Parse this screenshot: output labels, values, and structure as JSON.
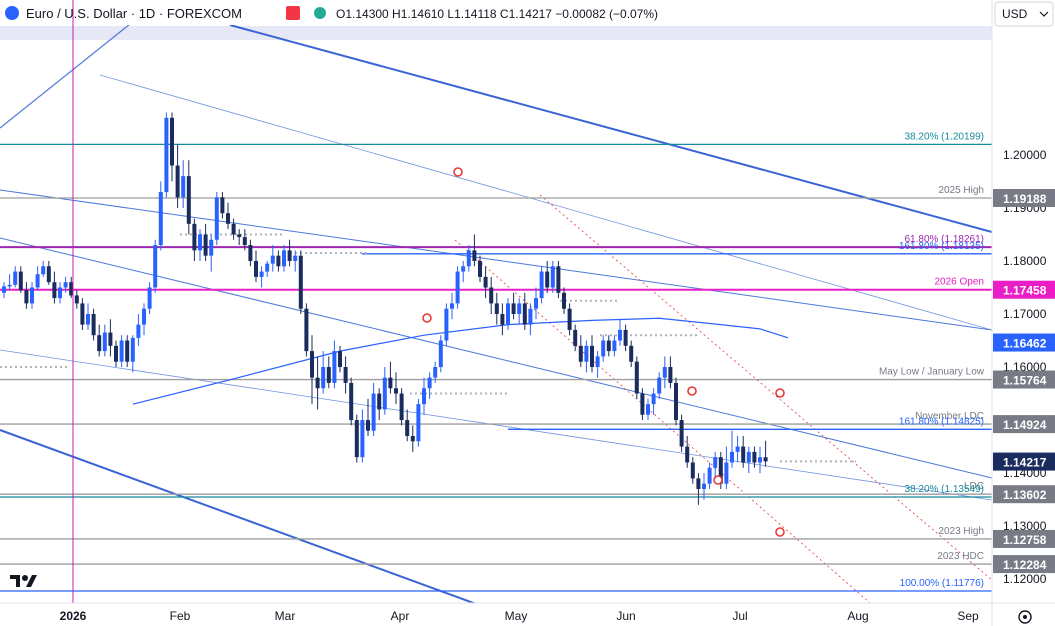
{
  "header": {
    "symbol_title": "Euro / U.S. Dollar · 1D · FOREXCOM",
    "ohlc": "O1.14300 H1.14610 L1.14118 C1.14217 −0.00082 (−0.07%)",
    "currency_selector": "USD",
    "up_color": "#2962ff",
    "down_color": "#1a2b5e"
  },
  "footer": {
    "tv_logo": "TradingView",
    "settings_icon": "gear-icon"
  },
  "chart_data": {
    "type": "candlestick",
    "x_ticks": [
      "2026",
      "Feb",
      "Mar",
      "Apr",
      "May",
      "Jun",
      "Jul",
      "Aug",
      "Sep"
    ],
    "ylim": [
      1.1155,
      1.2245
    ],
    "y_ticks": [
      1.12,
      1.13,
      1.14,
      1.15,
      1.16,
      1.17,
      1.18,
      1.19,
      1.2
    ],
    "y_tick_labels": [
      "1.12000",
      "1.13000",
      "1.14000",
      "1.15000",
      "1.16000",
      "1.17000",
      "1.18000",
      "1.19000",
      "1.20000"
    ],
    "candles": [
      {
        "o": 1.174,
        "h": 1.176,
        "l": 1.173,
        "c": 1.1752
      },
      {
        "o": 1.1752,
        "h": 1.1775,
        "l": 1.1745,
        "c": 1.1755
      },
      {
        "o": 1.1755,
        "h": 1.179,
        "l": 1.175,
        "c": 1.178
      },
      {
        "o": 1.178,
        "h": 1.179,
        "l": 1.174,
        "c": 1.1745
      },
      {
        "o": 1.1745,
        "h": 1.176,
        "l": 1.171,
        "c": 1.172
      },
      {
        "o": 1.172,
        "h": 1.176,
        "l": 1.171,
        "c": 1.175
      },
      {
        "o": 1.175,
        "h": 1.179,
        "l": 1.1745,
        "c": 1.1775
      },
      {
        "o": 1.1775,
        "h": 1.18,
        "l": 1.177,
        "c": 1.179
      },
      {
        "o": 1.179,
        "h": 1.18,
        "l": 1.1755,
        "c": 1.176
      },
      {
        "o": 1.176,
        "h": 1.178,
        "l": 1.172,
        "c": 1.173
      },
      {
        "o": 1.173,
        "h": 1.176,
        "l": 1.172,
        "c": 1.175
      },
      {
        "o": 1.175,
        "h": 1.177,
        "l": 1.174,
        "c": 1.176
      },
      {
        "o": 1.176,
        "h": 1.177,
        "l": 1.173,
        "c": 1.1735
      },
      {
        "o": 1.1735,
        "h": 1.1745,
        "l": 1.171,
        "c": 1.172
      },
      {
        "o": 1.172,
        "h": 1.173,
        "l": 1.167,
        "c": 1.168
      },
      {
        "o": 1.168,
        "h": 1.172,
        "l": 1.167,
        "c": 1.17
      },
      {
        "o": 1.17,
        "h": 1.171,
        "l": 1.165,
        "c": 1.166
      },
      {
        "o": 1.166,
        "h": 1.168,
        "l": 1.162,
        "c": 1.163
      },
      {
        "o": 1.163,
        "h": 1.168,
        "l": 1.162,
        "c": 1.1665
      },
      {
        "o": 1.1665,
        "h": 1.169,
        "l": 1.162,
        "c": 1.164
      },
      {
        "o": 1.164,
        "h": 1.165,
        "l": 1.16,
        "c": 1.161
      },
      {
        "o": 1.161,
        "h": 1.166,
        "l": 1.16,
        "c": 1.165
      },
      {
        "o": 1.165,
        "h": 1.166,
        "l": 1.16,
        "c": 1.161
      },
      {
        "o": 1.161,
        "h": 1.166,
        "l": 1.159,
        "c": 1.1655
      },
      {
        "o": 1.1655,
        "h": 1.17,
        "l": 1.164,
        "c": 1.168
      },
      {
        "o": 1.168,
        "h": 1.172,
        "l": 1.166,
        "c": 1.171
      },
      {
        "o": 1.171,
        "h": 1.176,
        "l": 1.17,
        "c": 1.175
      },
      {
        "o": 1.175,
        "h": 1.184,
        "l": 1.174,
        "c": 1.183
      },
      {
        "o": 1.183,
        "h": 1.195,
        "l": 1.182,
        "c": 1.193
      },
      {
        "o": 1.193,
        "h": 1.208,
        "l": 1.192,
        "c": 1.207
      },
      {
        "o": 1.207,
        "h": 1.208,
        "l": 1.195,
        "c": 1.198
      },
      {
        "o": 1.198,
        "h": 1.202,
        "l": 1.19,
        "c": 1.192
      },
      {
        "o": 1.192,
        "h": 1.199,
        "l": 1.19,
        "c": 1.196
      },
      {
        "o": 1.196,
        "h": 1.199,
        "l": 1.185,
        "c": 1.187
      },
      {
        "o": 1.187,
        "h": 1.188,
        "l": 1.18,
        "c": 1.182
      },
      {
        "o": 1.182,
        "h": 1.186,
        "l": 1.18,
        "c": 1.185
      },
      {
        "o": 1.185,
        "h": 1.187,
        "l": 1.18,
        "c": 1.181
      },
      {
        "o": 1.181,
        "h": 1.185,
        "l": 1.178,
        "c": 1.184
      },
      {
        "o": 1.184,
        "h": 1.193,
        "l": 1.183,
        "c": 1.192
      },
      {
        "o": 1.192,
        "h": 1.193,
        "l": 1.188,
        "c": 1.189
      },
      {
        "o": 1.189,
        "h": 1.191,
        "l": 1.186,
        "c": 1.187
      },
      {
        "o": 1.187,
        "h": 1.188,
        "l": 1.184,
        "c": 1.185
      },
      {
        "o": 1.185,
        "h": 1.186,
        "l": 1.183,
        "c": 1.1845
      },
      {
        "o": 1.1845,
        "h": 1.186,
        "l": 1.182,
        "c": 1.183
      },
      {
        "o": 1.183,
        "h": 1.184,
        "l": 1.179,
        "c": 1.18
      },
      {
        "o": 1.18,
        "h": 1.182,
        "l": 1.176,
        "c": 1.177
      },
      {
        "o": 1.177,
        "h": 1.179,
        "l": 1.175,
        "c": 1.178
      },
      {
        "o": 1.178,
        "h": 1.18,
        "l": 1.177,
        "c": 1.1795
      },
      {
        "o": 1.1795,
        "h": 1.183,
        "l": 1.178,
        "c": 1.181
      },
      {
        "o": 1.181,
        "h": 1.182,
        "l": 1.178,
        "c": 1.179
      },
      {
        "o": 1.179,
        "h": 1.183,
        "l": 1.178,
        "c": 1.182
      },
      {
        "o": 1.182,
        "h": 1.184,
        "l": 1.179,
        "c": 1.18
      },
      {
        "o": 1.18,
        "h": 1.182,
        "l": 1.178,
        "c": 1.181
      },
      {
        "o": 1.181,
        "h": 1.182,
        "l": 1.17,
        "c": 1.171
      },
      {
        "o": 1.171,
        "h": 1.172,
        "l": 1.162,
        "c": 1.163
      },
      {
        "o": 1.163,
        "h": 1.166,
        "l": 1.153,
        "c": 1.158
      },
      {
        "o": 1.158,
        "h": 1.162,
        "l": 1.152,
        "c": 1.156
      },
      {
        "o": 1.156,
        "h": 1.163,
        "l": 1.155,
        "c": 1.16
      },
      {
        "o": 1.16,
        "h": 1.162,
        "l": 1.156,
        "c": 1.157
      },
      {
        "o": 1.157,
        "h": 1.165,
        "l": 1.156,
        "c": 1.163
      },
      {
        "o": 1.163,
        "h": 1.164,
        "l": 1.159,
        "c": 1.16
      },
      {
        "o": 1.16,
        "h": 1.162,
        "l": 1.155,
        "c": 1.157
      },
      {
        "o": 1.157,
        "h": 1.158,
        "l": 1.149,
        "c": 1.15
      },
      {
        "o": 1.15,
        "h": 1.151,
        "l": 1.142,
        "c": 1.143
      },
      {
        "o": 1.143,
        "h": 1.152,
        "l": 1.142,
        "c": 1.15
      },
      {
        "o": 1.15,
        "h": 1.154,
        "l": 1.147,
        "c": 1.148
      },
      {
        "o": 1.148,
        "h": 1.157,
        "l": 1.147,
        "c": 1.155
      },
      {
        "o": 1.155,
        "h": 1.156,
        "l": 1.15,
        "c": 1.152
      },
      {
        "o": 1.152,
        "h": 1.16,
        "l": 1.151,
        "c": 1.158
      },
      {
        "o": 1.158,
        "h": 1.161,
        "l": 1.155,
        "c": 1.156
      },
      {
        "o": 1.156,
        "h": 1.159,
        "l": 1.153,
        "c": 1.155
      },
      {
        "o": 1.155,
        "h": 1.156,
        "l": 1.149,
        "c": 1.15
      },
      {
        "o": 1.15,
        "h": 1.152,
        "l": 1.146,
        "c": 1.147
      },
      {
        "o": 1.147,
        "h": 1.149,
        "l": 1.144,
        "c": 1.146
      },
      {
        "o": 1.146,
        "h": 1.154,
        "l": 1.145,
        "c": 1.153
      },
      {
        "o": 1.153,
        "h": 1.158,
        "l": 1.151,
        "c": 1.156
      },
      {
        "o": 1.156,
        "h": 1.159,
        "l": 1.154,
        "c": 1.158
      },
      {
        "o": 1.158,
        "h": 1.161,
        "l": 1.157,
        "c": 1.16
      },
      {
        "o": 1.16,
        "h": 1.166,
        "l": 1.159,
        "c": 1.165
      },
      {
        "o": 1.165,
        "h": 1.172,
        "l": 1.164,
        "c": 1.171
      },
      {
        "o": 1.171,
        "h": 1.174,
        "l": 1.169,
        "c": 1.172
      },
      {
        "o": 1.172,
        "h": 1.179,
        "l": 1.171,
        "c": 1.178
      },
      {
        "o": 1.178,
        "h": 1.18,
        "l": 1.176,
        "c": 1.179
      },
      {
        "o": 1.179,
        "h": 1.183,
        "l": 1.178,
        "c": 1.182
      },
      {
        "o": 1.182,
        "h": 1.185,
        "l": 1.179,
        "c": 1.18
      },
      {
        "o": 1.18,
        "h": 1.181,
        "l": 1.176,
        "c": 1.177
      },
      {
        "o": 1.177,
        "h": 1.179,
        "l": 1.173,
        "c": 1.175
      },
      {
        "o": 1.175,
        "h": 1.177,
        "l": 1.17,
        "c": 1.172
      },
      {
        "o": 1.172,
        "h": 1.174,
        "l": 1.168,
        "c": 1.17
      },
      {
        "o": 1.17,
        "h": 1.172,
        "l": 1.166,
        "c": 1.168
      },
      {
        "o": 1.168,
        "h": 1.173,
        "l": 1.167,
        "c": 1.172
      },
      {
        "o": 1.172,
        "h": 1.174,
        "l": 1.169,
        "c": 1.17
      },
      {
        "o": 1.17,
        "h": 1.173,
        "l": 1.168,
        "c": 1.172
      },
      {
        "o": 1.172,
        "h": 1.174,
        "l": 1.167,
        "c": 1.168
      },
      {
        "o": 1.168,
        "h": 1.172,
        "l": 1.166,
        "c": 1.171
      },
      {
        "o": 1.171,
        "h": 1.175,
        "l": 1.169,
        "c": 1.173
      },
      {
        "o": 1.173,
        "h": 1.179,
        "l": 1.172,
        "c": 1.178
      },
      {
        "o": 1.178,
        "h": 1.18,
        "l": 1.174,
        "c": 1.175
      },
      {
        "o": 1.175,
        "h": 1.18,
        "l": 1.174,
        "c": 1.179
      },
      {
        "o": 1.179,
        "h": 1.18,
        "l": 1.173,
        "c": 1.174
      },
      {
        "o": 1.174,
        "h": 1.175,
        "l": 1.17,
        "c": 1.171
      },
      {
        "o": 1.171,
        "h": 1.172,
        "l": 1.166,
        "c": 1.167
      },
      {
        "o": 1.167,
        "h": 1.168,
        "l": 1.163,
        "c": 1.164
      },
      {
        "o": 1.164,
        "h": 1.166,
        "l": 1.16,
        "c": 1.161
      },
      {
        "o": 1.161,
        "h": 1.165,
        "l": 1.159,
        "c": 1.164
      },
      {
        "o": 1.164,
        "h": 1.166,
        "l": 1.159,
        "c": 1.16
      },
      {
        "o": 1.16,
        "h": 1.163,
        "l": 1.158,
        "c": 1.162
      },
      {
        "o": 1.162,
        "h": 1.166,
        "l": 1.161,
        "c": 1.165
      },
      {
        "o": 1.165,
        "h": 1.166,
        "l": 1.162,
        "c": 1.163
      },
      {
        "o": 1.163,
        "h": 1.166,
        "l": 1.162,
        "c": 1.165
      },
      {
        "o": 1.165,
        "h": 1.169,
        "l": 1.164,
        "c": 1.167
      },
      {
        "o": 1.167,
        "h": 1.168,
        "l": 1.163,
        "c": 1.164
      },
      {
        "o": 1.164,
        "h": 1.165,
        "l": 1.16,
        "c": 1.161
      },
      {
        "o": 1.161,
        "h": 1.162,
        "l": 1.154,
        "c": 1.155
      },
      {
        "o": 1.155,
        "h": 1.156,
        "l": 1.15,
        "c": 1.151
      },
      {
        "o": 1.151,
        "h": 1.154,
        "l": 1.15,
        "c": 1.153
      },
      {
        "o": 1.153,
        "h": 1.156,
        "l": 1.151,
        "c": 1.155
      },
      {
        "o": 1.155,
        "h": 1.159,
        "l": 1.154,
        "c": 1.158
      },
      {
        "o": 1.158,
        "h": 1.162,
        "l": 1.156,
        "c": 1.16
      },
      {
        "o": 1.16,
        "h": 1.162,
        "l": 1.156,
        "c": 1.157
      },
      {
        "o": 1.157,
        "h": 1.158,
        "l": 1.149,
        "c": 1.15
      },
      {
        "o": 1.15,
        "h": 1.151,
        "l": 1.144,
        "c": 1.145
      },
      {
        "o": 1.145,
        "h": 1.147,
        "l": 1.141,
        "c": 1.142
      },
      {
        "o": 1.142,
        "h": 1.143,
        "l": 1.138,
        "c": 1.139
      },
      {
        "o": 1.139,
        "h": 1.14,
        "l": 1.134,
        "c": 1.137
      },
      {
        "o": 1.137,
        "h": 1.14,
        "l": 1.135,
        "c": 1.138
      },
      {
        "o": 1.138,
        "h": 1.142,
        "l": 1.137,
        "c": 1.141
      },
      {
        "o": 1.141,
        "h": 1.144,
        "l": 1.139,
        "c": 1.143
      },
      {
        "o": 1.143,
        "h": 1.144,
        "l": 1.137,
        "c": 1.138
      },
      {
        "o": 1.138,
        "h": 1.145,
        "l": 1.137,
        "c": 1.142
      },
      {
        "o": 1.142,
        "h": 1.148,
        "l": 1.141,
        "c": 1.144
      },
      {
        "o": 1.144,
        "h": 1.147,
        "l": 1.142,
        "c": 1.145
      },
      {
        "o": 1.145,
        "h": 1.147,
        "l": 1.141,
        "c": 1.142
      },
      {
        "o": 1.142,
        "h": 1.145,
        "l": 1.14,
        "c": 1.144
      },
      {
        "o": 1.144,
        "h": 1.145,
        "l": 1.141,
        "c": 1.142
      },
      {
        "o": 1.142,
        "h": 1.145,
        "l": 1.14,
        "c": 1.143
      },
      {
        "o": 1.143,
        "h": 1.1461,
        "l": 1.1412,
        "c": 1.1422
      }
    ],
    "sma": {
      "color": "#2962ff",
      "points": [
        [
          23,
          1.153
        ],
        [
          40,
          1.1575
        ],
        [
          60,
          1.163
        ],
        [
          75,
          1.166
        ],
        [
          90,
          1.168
        ],
        [
          105,
          1.1688
        ],
        [
          117,
          1.1692
        ],
        [
          128,
          1.168
        ],
        [
          135,
          1.1672
        ],
        [
          140,
          1.1655
        ]
      ]
    },
    "horizontal_levels": [
      {
        "value": 1.20199,
        "label": "38.20% (1.20199)",
        "color": "#178a9e",
        "label_color": "#178a9e"
      },
      {
        "value": 1.19188,
        "label": "2025 High",
        "color": "#9e9e9e",
        "label_color": "#787b86"
      },
      {
        "value": 1.18261,
        "label": "61.80% (1.18261)",
        "color": "#9c27b0",
        "label_color": "#9c27b0"
      },
      {
        "value": 1.18135,
        "label": "161.80% (1.18135)",
        "color": "#2962ff",
        "label_color": "#2962ff"
      },
      {
        "value": 1.17458,
        "label": "2026 Open",
        "color": "#e91ec7",
        "label_color": "#e91ec7"
      },
      {
        "value": 1.15764,
        "label": "May Low / January Low",
        "color": "#9e9e9e",
        "label_color": "#787b86"
      },
      {
        "value": 1.14924,
        "label": "November LDC",
        "color": "#9e9e9e",
        "label_color": "#787b86"
      },
      {
        "value": 1.14825,
        "label": "161.80% (1.14825)",
        "color": "#2962ff",
        "label_color": "#2962ff"
      },
      {
        "value": 1.13602,
        "label": "LDC",
        "color": "#9e9e9e",
        "label_color": "#787b86"
      },
      {
        "value": 1.13549,
        "label": "38.20% (1.13549)",
        "color": "#178a9e",
        "label_color": "#178a9e"
      },
      {
        "value": 1.12758,
        "label": "2023 High",
        "color": "#9e9e9e",
        "label_color": "#787b86"
      },
      {
        "value": 1.12284,
        "label": "2023 HDC",
        "color": "#9e9e9e",
        "label_color": "#787b86"
      },
      {
        "value": 1.11776,
        "label": "100.00% (1.11776)",
        "color": "#2962ff",
        "label_color": "#2962ff"
      }
    ],
    "hdc_label": "HDC",
    "price_tags": [
      {
        "value": 1.19188,
        "text": "1.19188",
        "bg": "#787b86",
        "fg": "#ffffff"
      },
      {
        "value": 1.17458,
        "text": "1.17458",
        "bg": "#e91ec7",
        "fg": "#ffffff"
      },
      {
        "value": 1.16462,
        "text": "1.16462",
        "bg": "#2962ff",
        "fg": "#ffffff"
      },
      {
        "value": 1.15764,
        "text": "1.15764",
        "bg": "#787b86",
        "fg": "#ffffff"
      },
      {
        "value": 1.14924,
        "text": "1.14924",
        "bg": "#787b86",
        "fg": "#ffffff"
      },
      {
        "value": 1.14217,
        "text": "1.14217",
        "bg": "#1a2b5e",
        "fg": "#ffffff"
      },
      {
        "value": 1.13602,
        "text": "1.13602",
        "bg": "#787b86",
        "fg": "#ffffff"
      },
      {
        "value": 1.12758,
        "text": "1.12758",
        "bg": "#787b86",
        "fg": "#ffffff"
      },
      {
        "value": 1.12284,
        "text": "1.12284",
        "bg": "#787b86",
        "fg": "#ffffff"
      }
    ]
  }
}
